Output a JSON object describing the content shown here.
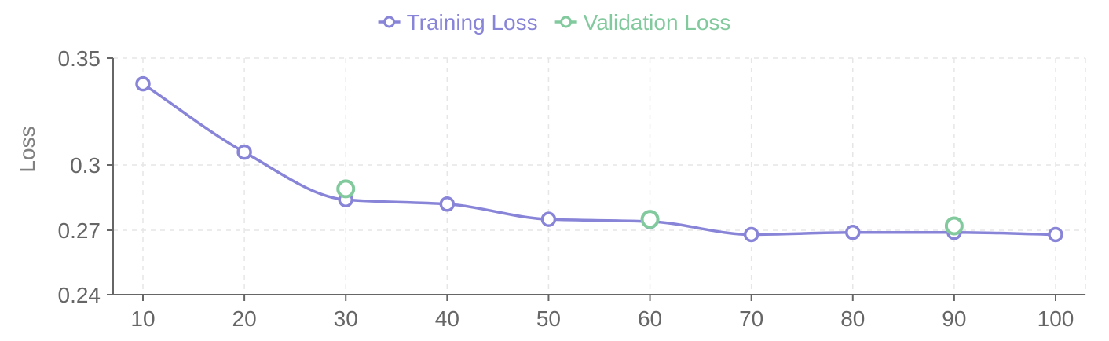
{
  "chart_data": {
    "type": "line",
    "title": "",
    "xlabel": "",
    "ylabel": "Loss",
    "x": [
      10,
      20,
      30,
      40,
      50,
      60,
      70,
      80,
      90,
      100
    ],
    "x_ticks": [
      "10",
      "20",
      "30",
      "40",
      "50",
      "60",
      "70",
      "80",
      "90",
      "100"
    ],
    "ylim": [
      0.24,
      0.35
    ],
    "y_ticks": [
      0.24,
      0.27,
      0.3,
      0.35
    ],
    "y_tick_labels": [
      "0.24",
      "0.27",
      "0.3",
      "0.35"
    ],
    "grid": true,
    "legend_position": "top-center",
    "series": [
      {
        "name": "Training Loss",
        "color": "#8884d8",
        "line": true,
        "values": [
          0.338,
          0.306,
          0.284,
          0.282,
          0.275,
          0.274,
          0.268,
          0.269,
          0.269,
          0.268
        ]
      },
      {
        "name": "Validation Loss",
        "color": "#82ca9d",
        "line": false,
        "values": [
          null,
          null,
          0.289,
          null,
          null,
          0.275,
          null,
          null,
          0.272,
          null
        ]
      }
    ]
  }
}
